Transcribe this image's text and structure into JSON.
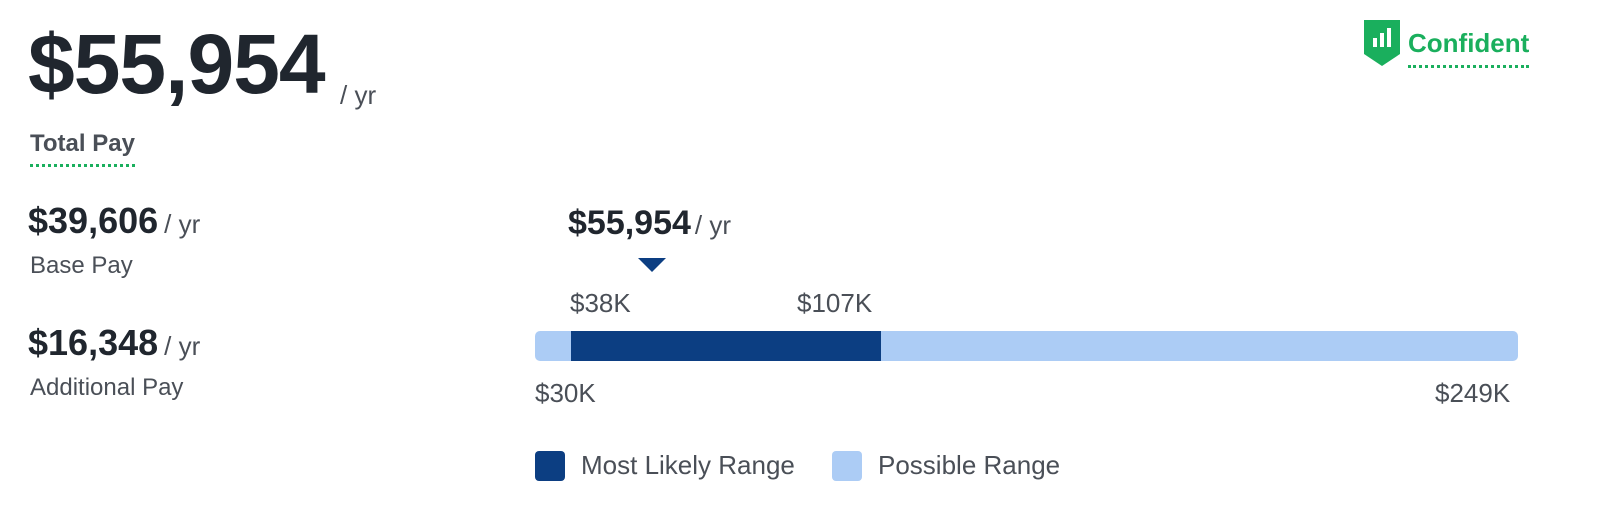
{
  "total_pay": {
    "amount": "$55,954",
    "unit": "/ yr",
    "label": "Total Pay"
  },
  "base_pay": {
    "amount": "$39,606",
    "unit": "/ yr",
    "label": "Base Pay"
  },
  "additional_pay": {
    "amount": "$16,348",
    "unit": "/ yr",
    "label": "Additional Pay"
  },
  "confidence": {
    "label": "Confident",
    "icon": "bar-chart-shield-icon",
    "color": "#1aaf5d"
  },
  "range": {
    "median_amount": "$55,954",
    "median_unit": "/ yr",
    "likely_low_label": "$38K",
    "likely_high_label": "$107K",
    "min_label": "$30K",
    "max_label": "$249K",
    "min_value": 30,
    "max_value": 249,
    "likely_low_value": 38,
    "likely_high value": 107,
    "likely_high_value": 107,
    "median_value": 55.954
  },
  "legend": {
    "most_likely": "Most Likely Range",
    "possible": "Possible Range"
  },
  "colors": {
    "most_likely": "#0c3e82",
    "possible": "#acccf5",
    "accent_green": "#1aaf5d"
  }
}
